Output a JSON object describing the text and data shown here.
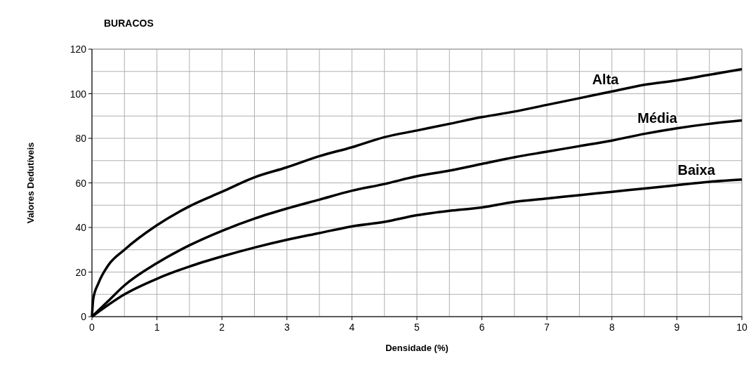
{
  "chart_data": {
    "type": "line",
    "title": "BURACOS",
    "xlabel": "Densidade (%)",
    "ylabel": "Valores Dedutíveis",
    "xlim": [
      0,
      10
    ],
    "xticks": [
      0,
      1,
      2,
      3,
      4,
      5,
      6,
      7,
      8,
      9,
      10
    ],
    "ylim": [
      0,
      120
    ],
    "yticks": [
      0,
      20,
      40,
      60,
      80,
      100,
      120
    ],
    "grid": true,
    "legend": false,
    "marker": "none",
    "line_style": "solid",
    "series": [
      {
        "name": "Alta",
        "color": "#000000",
        "x": [
          0,
          0.02,
          0.1,
          0.25,
          0.5,
          1,
          1.5,
          2,
          2.5,
          3,
          3.5,
          4,
          4.5,
          5,
          5.5,
          6,
          6.5,
          7,
          7.5,
          8,
          8.5,
          9,
          9.5,
          10
        ],
        "values": [
          0,
          8,
          15,
          23,
          30,
          41,
          49.5,
          56,
          62.5,
          67,
          72,
          76,
          80.5,
          83.5,
          86.5,
          89.5,
          92,
          95,
          98,
          101,
          104,
          106,
          108.5,
          111
        ]
      },
      {
        "name": "Média",
        "color": "#000000",
        "x": [
          0,
          0.25,
          0.5,
          1,
          1.5,
          2,
          2.5,
          3,
          3.5,
          4,
          4.5,
          5,
          5.5,
          6,
          6.5,
          7,
          7.5,
          8,
          8.5,
          9,
          9.5,
          10
        ],
        "values": [
          0,
          7,
          14,
          24,
          32,
          38.5,
          44,
          48.5,
          52.5,
          56.5,
          59.5,
          63,
          65.5,
          68.5,
          71.5,
          74,
          76.5,
          79,
          82,
          84.5,
          86.5,
          88
        ]
      },
      {
        "name": "Baixa",
        "color": "#000000",
        "x": [
          0,
          0.5,
          1,
          1.5,
          2,
          2.5,
          3,
          3.5,
          4,
          4.5,
          5,
          5.5,
          6,
          6.5,
          7,
          7.5,
          8,
          8.5,
          9,
          9.5,
          10
        ],
        "values": [
          0,
          10,
          17,
          22.5,
          27,
          31,
          34.5,
          37.5,
          40.5,
          42.5,
          45.5,
          47.5,
          49,
          51.5,
          53,
          54.5,
          56,
          57.5,
          59,
          60.5,
          61.5
        ]
      }
    ]
  }
}
